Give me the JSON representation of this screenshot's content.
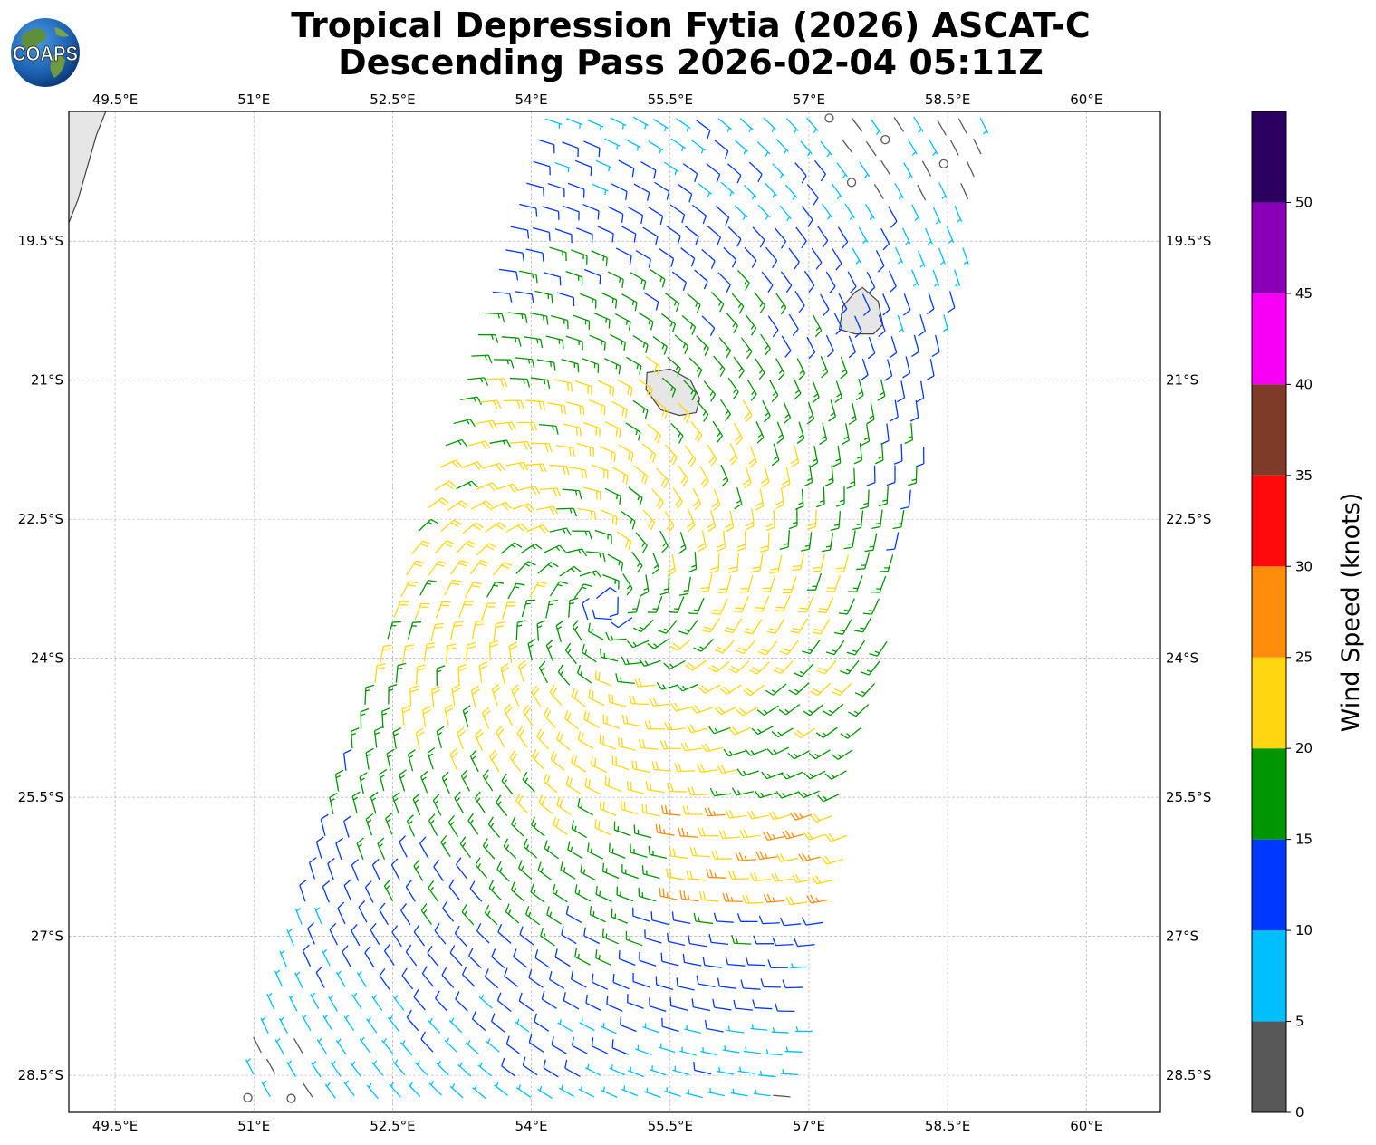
{
  "title": {
    "line1": "Tropical Depression Fytia (2026) ASCAT-C",
    "line2": "Descending Pass 2026-02-04 05:11Z"
  },
  "logo": {
    "text": "COAPS",
    "icon": "globe-icon"
  },
  "map": {
    "lon_range": [
      49.0,
      60.8
    ],
    "lat_range": [
      -28.9,
      -18.1
    ],
    "lon_ticks": [
      {
        "value": 49.5,
        "label": "49.5°E"
      },
      {
        "value": 51.0,
        "label": "51°E"
      },
      {
        "value": 52.5,
        "label": "52.5°E"
      },
      {
        "value": 54.0,
        "label": "54°E"
      },
      {
        "value": 55.5,
        "label": "55.5°E"
      },
      {
        "value": 57.0,
        "label": "57°E"
      },
      {
        "value": 58.5,
        "label": "58.5°E"
      },
      {
        "value": 60.0,
        "label": "60°E"
      }
    ],
    "lat_ticks": [
      {
        "value": -19.5,
        "label": "19.5°S"
      },
      {
        "value": -21.0,
        "label": "21°S"
      },
      {
        "value": -22.5,
        "label": "22.5°S"
      },
      {
        "value": -24.0,
        "label": "24°S"
      },
      {
        "value": -25.5,
        "label": "25.5°S"
      },
      {
        "value": -27.0,
        "label": "27°S"
      },
      {
        "value": -28.5,
        "label": "28.5°S"
      }
    ],
    "gridlines": true,
    "storm_center": {
      "lon": 54.8,
      "lat": -23.4
    },
    "swath_corners": [
      {
        "lon": 54.1,
        "lat": -18.1
      },
      {
        "lon": 59.0,
        "lat": -18.1
      },
      {
        "lon": 56.9,
        "lat": -28.9
      },
      {
        "lon": 50.8,
        "lat": -28.9
      }
    ],
    "landmasses": [
      {
        "name": "Madagascar",
        "points": [
          [
            49.4,
            -18.1
          ],
          [
            49.3,
            -18.35
          ],
          [
            49.2,
            -18.7
          ],
          [
            49.1,
            -19.05
          ],
          [
            49.0,
            -19.3
          ]
        ]
      },
      {
        "name": "Reunion",
        "points": [
          [
            55.25,
            -20.92
          ],
          [
            55.5,
            -20.88
          ],
          [
            55.72,
            -21.0
          ],
          [
            55.82,
            -21.2
          ],
          [
            55.78,
            -21.35
          ],
          [
            55.6,
            -21.38
          ],
          [
            55.4,
            -21.32
          ],
          [
            55.24,
            -21.1
          ]
        ]
      },
      {
        "name": "Mauritius",
        "points": [
          [
            57.58,
            -20.0
          ],
          [
            57.75,
            -20.15
          ],
          [
            57.8,
            -20.4
          ],
          [
            57.7,
            -20.5
          ],
          [
            57.5,
            -20.5
          ],
          [
            57.33,
            -20.45
          ],
          [
            57.37,
            -20.2
          ],
          [
            57.5,
            -20.05
          ]
        ]
      }
    ]
  },
  "colorbar": {
    "label": "Wind Speed (knots)",
    "range": [
      0,
      55
    ],
    "bands": [
      {
        "from": 0,
        "to": 5,
        "color": "#585858"
      },
      {
        "from": 5,
        "to": 10,
        "color": "#00bfff"
      },
      {
        "from": 10,
        "to": 15,
        "color": "#0038ff"
      },
      {
        "from": 15,
        "to": 20,
        "color": "#009600"
      },
      {
        "from": 20,
        "to": 25,
        "color": "#ffd610"
      },
      {
        "from": 25,
        "to": 30,
        "color": "#ff8c0a"
      },
      {
        "from": 30,
        "to": 35,
        "color": "#ff0a0a"
      },
      {
        "from": 35,
        "to": 40,
        "color": "#7d3b28"
      },
      {
        "from": 40,
        "to": 45,
        "color": "#f500f5"
      },
      {
        "from": 45,
        "to": 50,
        "color": "#8a00b4"
      },
      {
        "from": 50,
        "to": 55,
        "color": "#2a005f"
      }
    ],
    "ticks": [
      {
        "value": 0,
        "label": "0"
      },
      {
        "value": 5,
        "label": "5"
      },
      {
        "value": 10,
        "label": "10"
      },
      {
        "value": 15,
        "label": "15"
      },
      {
        "value": 20,
        "label": "20"
      },
      {
        "value": 25,
        "label": "25"
      },
      {
        "value": 30,
        "label": "30"
      },
      {
        "value": 35,
        "label": "35"
      },
      {
        "value": 40,
        "label": "40"
      },
      {
        "value": 45,
        "label": "45"
      },
      {
        "value": 50,
        "label": "50"
      }
    ]
  },
  "colors": {
    "coast": "#444444",
    "land": "#e6e6e6",
    "grid": "#b4b4b4"
  }
}
